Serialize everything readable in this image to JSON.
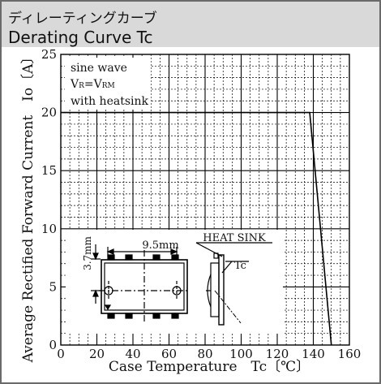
{
  "header": {
    "title_jp": "ディレーティングカーブ",
    "title_en": "Derating Curve Tc"
  },
  "chart_data": {
    "type": "line",
    "xlabel": "Case Temperature　Tc〔℃〕",
    "ylabel": "Average Rectified Forward Current　Io〔A〕",
    "xlim": [
      0,
      160
    ],
    "ylim": [
      0,
      25
    ],
    "x_ticks": [
      0,
      20,
      40,
      60,
      80,
      100,
      120,
      140,
      160
    ],
    "y_ticks": [
      0,
      5,
      10,
      15,
      20,
      25
    ],
    "grid": true,
    "series": [
      {
        "x": [
          0,
          138,
          150
        ],
        "y": [
          20,
          20,
          0
        ]
      }
    ],
    "annotation_lines": [
      "sine wave",
      "V",
      "R",
      "=V",
      "RM",
      "with heatsink"
    ],
    "inset": {
      "dim_width": "9.5mm",
      "dim_height": "3.7mm",
      "heat_sink": "HEAT SINK",
      "tc_label": "Tc"
    }
  },
  "colors": {
    "header_bg": "#d9d9d9",
    "frame": "#6a6a6a",
    "line": "#000000",
    "grid": "#000000"
  }
}
